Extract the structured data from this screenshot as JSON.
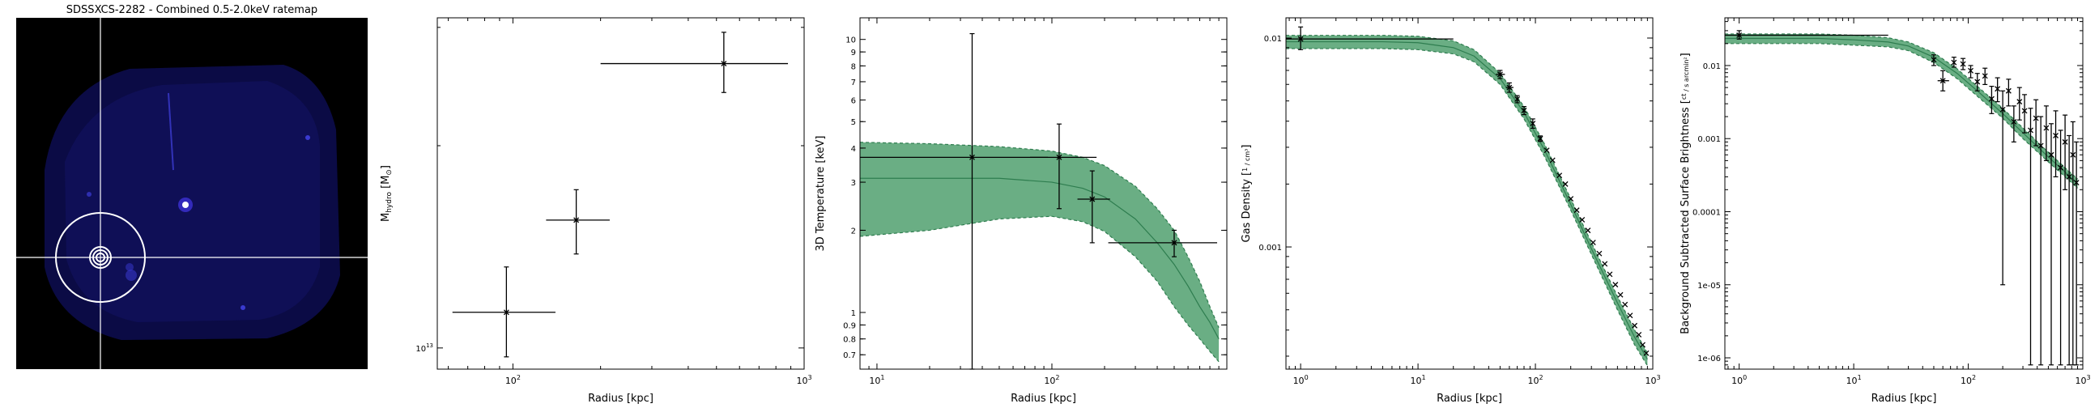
{
  "panel1": {
    "title": "SDSSXCS-2282 - Combined 0.5-2.0keV ratemap",
    "colors": {
      "background": "#000000",
      "footprint": "#0c0c4a",
      "source": "#ffffff",
      "crosshair": "#ffffff",
      "aperture": "#ffffff"
    }
  },
  "chart_data": [
    {
      "type": "scatter",
      "xlabel": "Radius [kpc]",
      "ylabel_main": "M",
      "ylabel_sub": "hydro",
      "ylabel_tail": " [M",
      "ylabel_sun": "⊙",
      "ylabel_end": "]",
      "xscale": "log",
      "yscale": "log",
      "xlim": [
        55,
        1000
      ],
      "ylim": [
        9300000000000.0,
        31000000000000.0
      ],
      "xticks": [
        {
          "v": 100,
          "b": "10",
          "e": "2"
        },
        {
          "v": 1000,
          "b": "10",
          "e": "3"
        }
      ],
      "yticks": [
        {
          "v": 10000000000000.0,
          "b": "10",
          "e": "13"
        }
      ],
      "points": [
        {
          "x": 95,
          "xerr": [
            62,
            140
          ],
          "y": 11300000000000.0,
          "yerr": [
            9700000000000.0,
            13200000000000.0
          ]
        },
        {
          "x": 165,
          "xerr": [
            130,
            215
          ],
          "y": 15500000000000.0,
          "yerr": [
            13800000000000.0,
            17200000000000.0
          ]
        },
        {
          "x": 530,
          "xerr": [
            200,
            880
          ],
          "y": 26500000000000.0,
          "yerr": [
            24000000000000.0,
            29500000000000.0
          ]
        }
      ]
    },
    {
      "type": "area",
      "xlabel": "Radius [kpc]",
      "ylabel": "3D Temperature [keV]",
      "xscale": "log",
      "yscale": "log",
      "xlim": [
        8,
        1000
      ],
      "ylim": [
        0.62,
        12
      ],
      "xticks": [
        {
          "v": 10,
          "b": "10",
          "e": "1"
        },
        {
          "v": 100,
          "b": "10",
          "e": "2"
        }
      ],
      "yticks": [
        {
          "v": 0.7,
          "l": "0.7"
        },
        {
          "v": 0.8,
          "l": "0.8"
        },
        {
          "v": 0.9,
          "l": "0.9"
        },
        {
          "v": 1,
          "l": "1"
        },
        {
          "v": 2,
          "l": "2"
        },
        {
          "v": 3,
          "l": "3"
        },
        {
          "v": 4,
          "l": "4"
        },
        {
          "v": 5,
          "l": "5"
        },
        {
          "v": 6,
          "l": "6"
        },
        {
          "v": 7,
          "l": "7"
        },
        {
          "v": 8,
          "l": "8"
        },
        {
          "v": 9,
          "l": "9"
        },
        {
          "v": 10,
          "l": "10"
        }
      ],
      "band_x": [
        8,
        20,
        50,
        100,
        150,
        200,
        300,
        400,
        500,
        600,
        700,
        800,
        900
      ],
      "band_upper": [
        4.2,
        4.15,
        4.05,
        3.9,
        3.7,
        3.45,
        2.9,
        2.4,
        2.0,
        1.6,
        1.3,
        1.05,
        0.88
      ],
      "band_lower": [
        1.9,
        2.0,
        2.2,
        2.25,
        2.15,
        1.98,
        1.6,
        1.3,
        1.05,
        0.9,
        0.8,
        0.72,
        0.66
      ],
      "band_median": [
        3.1,
        3.1,
        3.1,
        3.0,
        2.85,
        2.65,
        2.2,
        1.8,
        1.5,
        1.25,
        1.05,
        0.92,
        0.8
      ],
      "points": [
        {
          "x": 35,
          "xerr": [
            8,
            95
          ],
          "y": 3.7,
          "yerr": [
            0.6,
            10.5
          ]
        },
        {
          "x": 110,
          "xerr": [
            75,
            180
          ],
          "y": 3.7,
          "yerr": [
            2.4,
            4.9
          ]
        },
        {
          "x": 170,
          "xerr": [
            140,
            215
          ],
          "y": 2.6,
          "yerr": [
            1.8,
            3.3
          ]
        },
        {
          "x": 500,
          "xerr": [
            210,
            880
          ],
          "y": 1.8,
          "yerr": [
            1.6,
            2.0
          ]
        }
      ],
      "colors": {
        "band": "#6aae84",
        "edge": "#2e7d4f"
      }
    },
    {
      "type": "line",
      "xlabel": "Radius [kpc]",
      "ylabel": "Gas Density",
      "ylabel_num": "1",
      "ylabel_den": "cm³",
      "xscale": "log",
      "yscale": "log",
      "xlim": [
        0.75,
        1000
      ],
      "ylim": [
        0.00026,
        0.0125
      ],
      "xticks": [
        {
          "v": 1,
          "b": "10",
          "e": "0"
        },
        {
          "v": 10,
          "b": "10",
          "e": "1"
        },
        {
          "v": 100,
          "b": "10",
          "e": "2"
        },
        {
          "v": 1000,
          "b": "10",
          "e": "3"
        }
      ],
      "yticks": [
        {
          "v": 0.01,
          "l": "0.01"
        },
        {
          "v": 0.001,
          "l": "0.001"
        }
      ],
      "band_x": [
        0.75,
        5,
        10,
        20,
        30,
        50,
        80,
        120,
        200,
        300,
        500,
        700,
        900
      ],
      "band_upper": [
        0.0103,
        0.0103,
        0.0102,
        0.0097,
        0.0088,
        0.0068,
        0.0047,
        0.0031,
        0.0017,
        0.00105,
        0.00058,
        0.0004,
        0.00031
      ],
      "band_lower": [
        0.0089,
        0.0089,
        0.0088,
        0.0084,
        0.0077,
        0.006,
        0.0041,
        0.0027,
        0.0015,
        0.00092,
        0.0005,
        0.00034,
        0.00027
      ],
      "band_median": [
        0.0096,
        0.0096,
        0.0095,
        0.009,
        0.0082,
        0.0064,
        0.0044,
        0.0029,
        0.0016,
        0.00098,
        0.00054,
        0.00037,
        0.00029
      ],
      "points": [
        {
          "x": 1,
          "xerr": [
            0.75,
            20
          ],
          "y": 0.0099,
          "yerr": [
            0.0088,
            0.0113
          ]
        },
        {
          "x": 50,
          "y": 0.0067,
          "yerr": [
            0.0064,
            0.007
          ],
          "xerr": [
            46,
            55
          ]
        },
        {
          "x": 60,
          "y": 0.0058,
          "yerr": [
            0.0055,
            0.0061
          ],
          "xerr": [
            56,
            65
          ]
        },
        {
          "x": 70,
          "y": 0.0051,
          "yerr": [
            0.0049,
            0.0053
          ]
        },
        {
          "x": 80,
          "y": 0.0045,
          "yerr": [
            0.0043,
            0.0047
          ]
        },
        {
          "x": 95,
          "y": 0.0039,
          "yerr": [
            0.0037,
            0.0041
          ]
        },
        {
          "x": 110,
          "y": 0.0033,
          "yerr": [
            0.0032,
            0.0034
          ]
        },
        {
          "x": 125,
          "y": 0.0029
        },
        {
          "x": 140,
          "y": 0.0026
        },
        {
          "x": 160,
          "y": 0.0022
        },
        {
          "x": 180,
          "y": 0.002
        },
        {
          "x": 200,
          "y": 0.0017
        },
        {
          "x": 225,
          "y": 0.0015
        },
        {
          "x": 250,
          "y": 0.00135
        },
        {
          "x": 280,
          "y": 0.0012
        },
        {
          "x": 310,
          "y": 0.00105
        },
        {
          "x": 350,
          "y": 0.00093
        },
        {
          "x": 390,
          "y": 0.00083
        },
        {
          "x": 430,
          "y": 0.00074
        },
        {
          "x": 480,
          "y": 0.00066
        },
        {
          "x": 530,
          "y": 0.00059
        },
        {
          "x": 580,
          "y": 0.00053
        },
        {
          "x": 640,
          "y": 0.00047
        },
        {
          "x": 700,
          "y": 0.00042
        },
        {
          "x": 760,
          "y": 0.00038
        },
        {
          "x": 820,
          "y": 0.00034
        },
        {
          "x": 880,
          "y": 0.00031
        }
      ],
      "colors": {
        "band": "#6aae84",
        "edge": "#2e7d4f"
      }
    },
    {
      "type": "line",
      "xlabel": "Radius [kpc]",
      "ylabel": "Background Subtracted Surface Brightness",
      "ylabel_num": "ct",
      "ylabel_den": "s arcmin²",
      "xscale": "log",
      "yscale": "log",
      "xlim": [
        0.75,
        1000
      ],
      "ylim": [
        7e-07,
        0.045
      ],
      "xticks": [
        {
          "v": 1,
          "b": "10",
          "e": "0"
        },
        {
          "v": 10,
          "b": "10",
          "e": "1"
        },
        {
          "v": 100,
          "b": "10",
          "e": "2"
        },
        {
          "v": 1000,
          "b": "10",
          "e": "3"
        }
      ],
      "yticks": [
        {
          "v": 0.01,
          "l": "0.01"
        },
        {
          "v": 0.001,
          "l": "0.001"
        },
        {
          "v": 0.0001,
          "l": "0.0001"
        },
        {
          "v": 1e-05,
          "l": "1e-05"
        },
        {
          "v": 1e-06,
          "l": "1e-06"
        }
      ],
      "band_x": [
        0.75,
        5,
        10,
        20,
        30,
        50,
        80,
        120,
        200,
        300,
        500,
        700,
        900
      ],
      "band_upper": [
        0.027,
        0.027,
        0.026,
        0.024,
        0.021,
        0.015,
        0.009,
        0.0052,
        0.0026,
        0.0014,
        0.00065,
        0.0004,
        0.00028
      ],
      "band_lower": [
        0.02,
        0.02,
        0.019,
        0.018,
        0.016,
        0.011,
        0.0066,
        0.0038,
        0.0019,
        0.001,
        0.00048,
        0.0003,
        0.00021
      ],
      "band_median": [
        0.0235,
        0.0235,
        0.0225,
        0.021,
        0.0185,
        0.013,
        0.0078,
        0.0045,
        0.0022,
        0.0012,
        0.00056,
        0.00035,
        0.00024
      ],
      "points": [
        {
          "x": 1,
          "xerr": [
            0.75,
            20
          ],
          "y": 0.026,
          "yerr": [
            0.023,
            0.03
          ]
        },
        {
          "x": 50,
          "y": 0.012,
          "yerr": [
            0.01,
            0.014
          ]
        },
        {
          "x": 60,
          "y": 0.0062,
          "yerr": [
            0.0045,
            0.0085
          ],
          "xerr": [
            54,
            68
          ]
        },
        {
          "x": 75,
          "y": 0.011,
          "yerr": [
            0.0095,
            0.013
          ]
        },
        {
          "x": 90,
          "y": 0.0105,
          "yerr": [
            0.0088,
            0.0125
          ]
        },
        {
          "x": 105,
          "y": 0.0085,
          "yerr": [
            0.0068,
            0.01
          ]
        },
        {
          "x": 120,
          "y": 0.006,
          "yerr": [
            0.0045,
            0.0078
          ]
        },
        {
          "x": 140,
          "y": 0.0072,
          "yerr": [
            0.0055,
            0.0092
          ]
        },
        {
          "x": 160,
          "y": 0.0035,
          "yerr": [
            0.0022,
            0.0052
          ]
        },
        {
          "x": 180,
          "y": 0.0048,
          "yerr": [
            0.0032,
            0.0068
          ]
        },
        {
          "x": 200,
          "y": 0.0025,
          "yerr": [
            1e-05,
            0.0045
          ]
        },
        {
          "x": 225,
          "y": 0.0045,
          "yerr": [
            0.0028,
            0.0065
          ]
        },
        {
          "x": 250,
          "y": 0.0017,
          "yerr": [
            0.0009,
            0.0028
          ]
        },
        {
          "x": 280,
          "y": 0.0032,
          "yerr": [
            0.0018,
            0.005
          ]
        },
        {
          "x": 310,
          "y": 0.0024,
          "yerr": [
            0.0012,
            0.004
          ]
        },
        {
          "x": 350,
          "y": 0.0013,
          "yerr": [
            8e-07,
            0.0026
          ]
        },
        {
          "x": 390,
          "y": 0.0019,
          "yerr": [
            0.0008,
            0.0034
          ]
        },
        {
          "x": 430,
          "y": 0.0008,
          "yerr": [
            8e-07,
            0.002
          ]
        },
        {
          "x": 480,
          "y": 0.0014,
          "yerr": [
            0.0005,
            0.0028
          ]
        },
        {
          "x": 530,
          "y": 0.0006,
          "yerr": [
            8e-07,
            0.0016
          ]
        },
        {
          "x": 580,
          "y": 0.0011,
          "yerr": [
            0.0003,
            0.0024
          ]
        },
        {
          "x": 640,
          "y": 0.0004,
          "yerr": [
            8e-07,
            0.0013
          ]
        },
        {
          "x": 700,
          "y": 0.0009,
          "yerr": [
            0.0002,
            0.0021
          ]
        },
        {
          "x": 760,
          "y": 0.0003,
          "yerr": [
            8e-07,
            0.0011
          ]
        },
        {
          "x": 820,
          "y": 0.0006,
          "yerr": [
            8e-07,
            0.0017
          ]
        },
        {
          "x": 880,
          "y": 0.00025,
          "yerr": [
            8e-07,
            0.0009
          ]
        }
      ],
      "colors": {
        "band": "#6aae84",
        "edge": "#2e7d4f"
      }
    }
  ]
}
